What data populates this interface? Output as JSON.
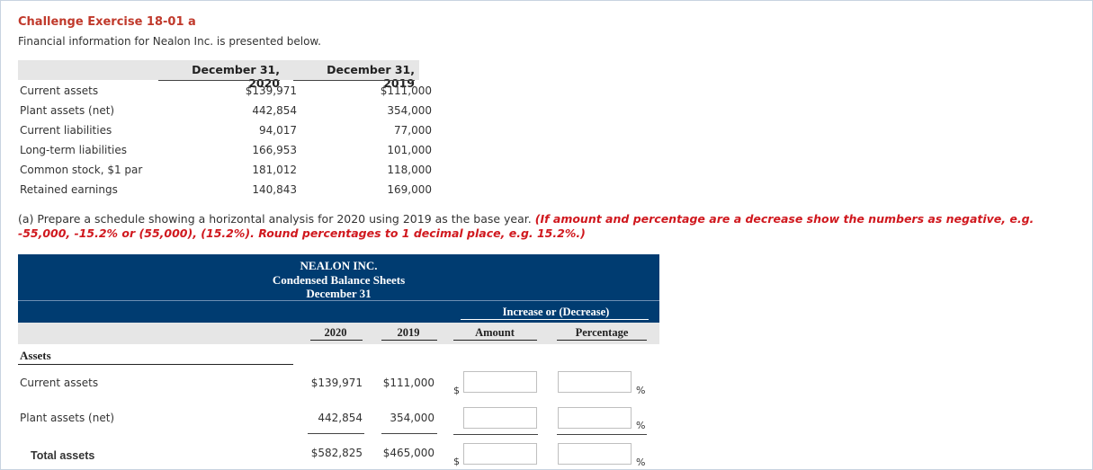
{
  "header": {
    "title": "Challenge Exercise 18-01 a",
    "subtitle": "Financial information for Nealon Inc. is presented below."
  },
  "data_table": {
    "col1": "December 31, 2020",
    "col2": "December 31, 2019",
    "rows": [
      {
        "label": "Current assets",
        "v2020": "$139,971",
        "v2019": "$111,000"
      },
      {
        "label": "Plant assets (net)",
        "v2020": "442,854",
        "v2019": "354,000"
      },
      {
        "label": "Current liabilities",
        "v2020": "94,017",
        "v2019": "77,000"
      },
      {
        "label": "Long-term liabilities",
        "v2020": "166,953",
        "v2019": "101,000"
      },
      {
        "label": "Common stock, $1 par",
        "v2020": "181,012",
        "v2019": "118,000"
      },
      {
        "label": "Retained earnings",
        "v2020": "140,843",
        "v2019": "169,000"
      }
    ]
  },
  "instructions": {
    "prefix": "(a) Prepare a schedule showing a horizontal analysis for 2020 using 2019 as the base year.",
    "emphasis": "(If amount and percentage are a decrease show the numbers as negative, e.g. -55,000, -15.2% or (55,000), (15.2%). Round percentages to 1 decimal place, e.g. 15.2%.)"
  },
  "schedule": {
    "company": "NEALON INC.",
    "statement": "Condensed Balance Sheets",
    "date": "December 31",
    "increase_header": "Increase or (Decrease)",
    "columns": {
      "y2020": "2020",
      "y2019": "2019",
      "amount": "Amount",
      "percentage": "Percentage"
    },
    "section": "Assets",
    "rows": [
      {
        "label": "Current assets",
        "v2020": "$139,971",
        "v2019": "$111,000",
        "amount": "",
        "percentage": ""
      },
      {
        "label": "Plant assets (net)",
        "v2020": "442,854",
        "v2019": "354,000",
        "amount": "",
        "percentage": ""
      },
      {
        "label": "Total assets",
        "v2020": "$582,825",
        "v2019": "$465,000",
        "amount": "",
        "percentage": ""
      }
    ],
    "currency_symbol": "$",
    "percent_symbol": "%"
  }
}
